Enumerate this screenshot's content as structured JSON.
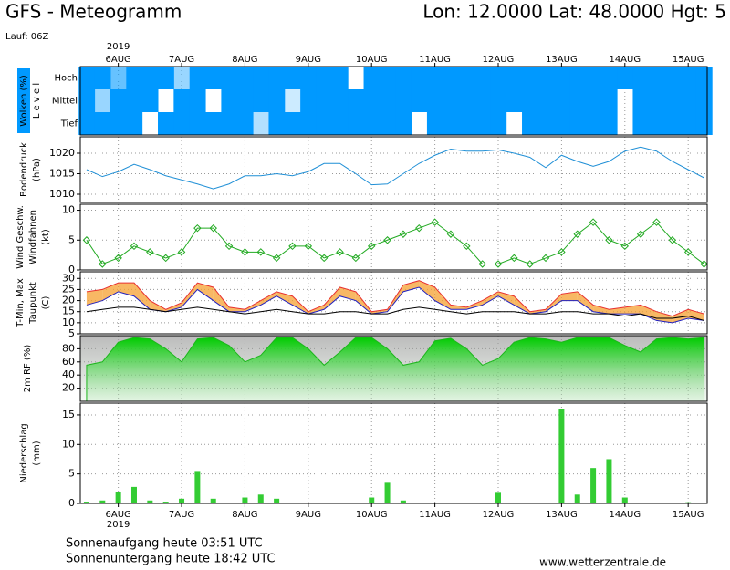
{
  "header": {
    "title": "GFS - Meteogramm",
    "location": "Lon: 12.0000 Lat: 48.0000 Hgt: 5",
    "run": "Lauf: 06Z"
  },
  "footer": {
    "sunrise": "Sonnenaufgang heute 03:51 UTC",
    "sunset": "Sonnenuntergang heute 18:42 UTC",
    "source": "www.wetterzentrale.de"
  },
  "chart_data": [
    {
      "type": "cloud",
      "ylabel": [
        "Wolken (%)",
        "L e v e l"
      ],
      "ylabel_colors": [
        "#ffffff",
        "#000000"
      ],
      "year_label": "2019",
      "xlim": [
        -0.6,
        9.3
      ],
      "xticks": [
        {
          "value": 0,
          "label": "6AUG"
        },
        {
          "value": 1,
          "label": "7AUG"
        },
        {
          "value": 2,
          "label": "8AUG"
        },
        {
          "value": 3,
          "label": "9AUG"
        },
        {
          "value": 4,
          "label": "10AUG"
        },
        {
          "value": 5,
          "label": "11AUG"
        },
        {
          "value": 6,
          "label": "12AUG"
        },
        {
          "value": 7,
          "label": "13AUG"
        },
        {
          "value": 8,
          "label": "14AUG"
        },
        {
          "value": 9,
          "label": "15AUG"
        }
      ],
      "x": [
        -0.5,
        -0.25,
        0,
        0.25,
        0.5,
        0.75,
        1,
        1.25,
        1.5,
        1.75,
        2,
        2.25,
        2.5,
        2.75,
        3,
        3.25,
        3.5,
        3.75,
        4,
        4.25,
        4.5,
        4.75,
        5,
        5.25,
        5.5,
        5.75,
        6,
        6.25,
        6.5,
        6.75,
        7,
        7.25,
        7.5,
        7.75,
        8,
        8.25,
        8.5,
        8.75,
        9,
        9.25
      ],
      "series": [
        {
          "name": "Hoch",
          "color": "#0099ff",
          "values": [
            100,
            100,
            60,
            100,
            100,
            100,
            40,
            100,
            100,
            100,
            100,
            100,
            100,
            100,
            100,
            100,
            100,
            0,
            100,
            100,
            100,
            100,
            100,
            100,
            100,
            100,
            100,
            100,
            100,
            100,
            100,
            100,
            100,
            100,
            100,
            100,
            100,
            100,
            100,
            100
          ]
        },
        {
          "name": "Mittel",
          "color": "#0099ff",
          "values": [
            100,
            40,
            100,
            100,
            100,
            0,
            100,
            100,
            0,
            100,
            100,
            100,
            100,
            20,
            100,
            100,
            100,
            100,
            100,
            100,
            100,
            100,
            100,
            100,
            100,
            100,
            100,
            100,
            100,
            100,
            100,
            100,
            100,
            100,
            0,
            100,
            100,
            100,
            100,
            100
          ]
        },
        {
          "name": "Tief",
          "color": "#0099ff",
          "values": [
            100,
            100,
            100,
            100,
            0,
            100,
            100,
            100,
            100,
            100,
            100,
            30,
            100,
            100,
            100,
            100,
            100,
            100,
            100,
            100,
            100,
            0,
            100,
            100,
            100,
            100,
            100,
            0,
            100,
            100,
            100,
            100,
            100,
            100,
            0,
            100,
            100,
            100,
            100,
            100
          ]
        }
      ]
    },
    {
      "type": "line",
      "ylabel": [
        "Bodendruck",
        "(hPa)"
      ],
      "ylabel_colors": [
        "#000000",
        "#000000"
      ],
      "xlim": [
        -0.6,
        9.3
      ],
      "ylim": [
        1008,
        1024
      ],
      "yticks": [
        1010,
        1015,
        1020
      ],
      "grid": true,
      "x": [
        -0.5,
        -0.25,
        0,
        0.25,
        0.5,
        0.75,
        1,
        1.25,
        1.5,
        1.75,
        2,
        2.25,
        2.5,
        2.75,
        3,
        3.25,
        3.5,
        3.75,
        4,
        4.25,
        4.5,
        4.75,
        5,
        5.25,
        5.5,
        5.75,
        6,
        6.25,
        6.5,
        6.75,
        7,
        7.25,
        7.5,
        7.75,
        8,
        8.25,
        8.5,
        8.75,
        9,
        9.25
      ],
      "series": [
        {
          "name": "Bodendruck",
          "color": "#1f8fd6",
          "values": [
            1016,
            1014.3,
            1015.5,
            1017.3,
            1016,
            1014.5,
            1013.5,
            1012.5,
            1011.3,
            1012.5,
            1014.5,
            1014.5,
            1015,
            1014.5,
            1015.5,
            1017.5,
            1017.5,
            1015,
            1012.3,
            1012.5,
            1015,
            1017.5,
            1019.5,
            1021,
            1020.5,
            1020.5,
            1020.8,
            1020,
            1019,
            1016.5,
            1019.5,
            1018,
            1016.8,
            1018,
            1020.5,
            1021.5,
            1020.5,
            1018,
            1016,
            1014
          ]
        }
      ]
    },
    {
      "type": "line",
      "ylabel": [
        "Wind Geschw.",
        "Windfahnen",
        "(kt)"
      ],
      "ylabel_colors": [
        "#00aa00",
        "#000000",
        "#000000"
      ],
      "xlim": [
        -0.6,
        9.3
      ],
      "ylim": [
        0,
        11
      ],
      "yticks": [
        0,
        5,
        10
      ],
      "grid": true,
      "markers": true,
      "x": [
        -0.5,
        -0.25,
        0,
        0.25,
        0.5,
        0.75,
        1,
        1.25,
        1.5,
        1.75,
        2,
        2.25,
        2.5,
        2.75,
        3,
        3.25,
        3.5,
        3.75,
        4,
        4.25,
        4.5,
        4.75,
        5,
        5.25,
        5.5,
        5.75,
        6,
        6.25,
        6.5,
        6.75,
        7,
        7.25,
        7.5,
        7.75,
        8,
        8.25,
        8.5,
        8.75,
        9,
        9.25
      ],
      "series": [
        {
          "name": "Wind Geschw.",
          "color": "#22aa22",
          "values": [
            5,
            1,
            2,
            4,
            3,
            2,
            3,
            7,
            7,
            4,
            3,
            3,
            2,
            4,
            4,
            2,
            3,
            2,
            4,
            5,
            6,
            7,
            8,
            6,
            4,
            1,
            1,
            2,
            1,
            2,
            3,
            6,
            8,
            5,
            4,
            6,
            8,
            5,
            3,
            1
          ]
        }
      ]
    },
    {
      "type": "line",
      "ylabel": [
        "T-Min, Max",
        "Taupunkt",
        "(C)"
      ],
      "ylabel_colors": [
        "#cc0000",
        "#000000",
        "#000000"
      ],
      "xlim": [
        -0.6,
        9.3
      ],
      "ylim": [
        5,
        33
      ],
      "yticks": [
        5,
        10,
        15,
        20,
        25,
        30
      ],
      "grid": true,
      "fill_color": "#f5a030",
      "x": [
        -0.5,
        -0.25,
        0,
        0.25,
        0.5,
        0.75,
        1,
        1.25,
        1.5,
        1.75,
        2,
        2.25,
        2.5,
        2.75,
        3,
        3.25,
        3.5,
        3.75,
        4,
        4.25,
        4.5,
        4.75,
        5,
        5.25,
        5.5,
        5.75,
        6,
        6.25,
        6.5,
        6.75,
        7,
        7.25,
        7.5,
        7.75,
        8,
        8.25,
        8.5,
        8.75,
        9,
        9.25
      ],
      "series": [
        {
          "name": "Max",
          "color": "#e83030",
          "values": [
            24,
            25,
            28,
            28,
            20,
            16,
            19,
            28,
            26,
            17,
            16,
            20,
            24,
            22,
            15,
            18,
            26,
            24,
            15,
            16,
            27,
            29,
            26,
            18,
            17,
            20,
            24,
            22,
            15,
            16,
            23,
            24,
            18,
            16,
            17,
            18,
            15,
            13,
            16,
            14
          ]
        },
        {
          "name": "T-Min",
          "color": "#2020c0",
          "values": [
            18,
            20,
            24,
            22,
            16,
            15,
            17,
            25,
            20,
            15,
            15,
            18,
            22,
            18,
            14,
            16,
            22,
            20,
            14,
            15,
            24,
            26,
            20,
            16,
            16,
            18,
            22,
            18,
            14,
            15,
            20,
            20,
            15,
            14,
            14,
            14,
            11,
            10,
            12,
            11
          ]
        },
        {
          "name": "Taupunkt",
          "color": "#000000",
          "values": [
            15,
            16,
            17,
            17,
            16,
            15,
            16,
            17,
            16,
            15,
            14,
            15,
            16,
            15,
            14,
            14,
            15,
            15,
            14,
            14,
            16,
            17,
            16,
            15,
            14,
            15,
            15,
            15,
            14,
            14,
            15,
            15,
            14,
            14,
            13,
            14,
            12,
            12,
            13,
            11
          ]
        }
      ]
    },
    {
      "type": "area",
      "ylabel": [
        "2m RF (%)"
      ],
      "ylabel_colors": [
        "#00aa00"
      ],
      "xlim": [
        -0.6,
        9.3
      ],
      "ylim": [
        0,
        100
      ],
      "yticks": [
        20,
        40,
        60,
        80
      ],
      "grid": true,
      "x": [
        -0.5,
        -0.25,
        0,
        0.25,
        0.5,
        0.75,
        1,
        1.25,
        1.5,
        1.75,
        2,
        2.25,
        2.5,
        2.75,
        3,
        3.25,
        3.5,
        3.75,
        4,
        4.25,
        4.5,
        4.75,
        5,
        5.25,
        5.5,
        5.75,
        6,
        6.25,
        6.5,
        6.75,
        7,
        7.25,
        7.5,
        7.75,
        8,
        8.25,
        8.5,
        8.75,
        9,
        9.25
      ],
      "series": [
        {
          "name": "2m RF (%)",
          "color": "#1cb51c",
          "values": [
            55,
            60,
            90,
            97,
            95,
            80,
            60,
            95,
            97,
            85,
            60,
            70,
            97,
            97,
            80,
            55,
            75,
            97,
            97,
            80,
            55,
            60,
            92,
            96,
            80,
            55,
            65,
            90,
            97,
            95,
            90,
            97,
            97,
            97,
            85,
            75,
            95,
            97,
            95,
            97
          ]
        }
      ]
    },
    {
      "type": "bar",
      "ylabel": [
        "Niederschlag",
        "(mm)"
      ],
      "ylabel_colors": [
        "#000000",
        "#000000"
      ],
      "year_label": "2019",
      "xlim": [
        -0.6,
        9.3
      ],
      "ylim": [
        0,
        17
      ],
      "yticks": [
        0,
        5,
        10,
        15
      ],
      "grid": true,
      "xticks": [
        {
          "value": 0,
          "label": "6AUG"
        },
        {
          "value": 1,
          "label": "7AUG"
        },
        {
          "value": 2,
          "label": "8AUG"
        },
        {
          "value": 3,
          "label": "9AUG"
        },
        {
          "value": 4,
          "label": "10AUG"
        },
        {
          "value": 5,
          "label": "11AUG"
        },
        {
          "value": 6,
          "label": "12AUG"
        },
        {
          "value": 7,
          "label": "13AUG"
        },
        {
          "value": 8,
          "label": "14AUG"
        },
        {
          "value": 9,
          "label": "15AUG"
        }
      ],
      "x": [
        -0.5,
        -0.25,
        0,
        0.25,
        0.5,
        0.75,
        1,
        1.25,
        1.5,
        1.75,
        2,
        2.25,
        2.5,
        2.75,
        3,
        3.25,
        3.5,
        3.75,
        4,
        4.25,
        4.5,
        4.75,
        5,
        5.25,
        5.5,
        5.75,
        6,
        6.25,
        6.5,
        6.75,
        7,
        7.25,
        7.5,
        7.75,
        8,
        8.25,
        8.5,
        8.75,
        9,
        9.25
      ],
      "series": [
        {
          "name": "Niederschlag",
          "color": "#33cc33",
          "values": [
            0.3,
            0.5,
            2,
            2.8,
            0.5,
            0.3,
            0.8,
            5.5,
            0.8,
            0,
            1,
            1.5,
            0.8,
            0,
            0,
            0,
            0,
            0,
            1,
            3.5,
            0.5,
            0,
            0,
            0,
            0,
            0,
            1.8,
            0,
            0,
            0,
            16,
            1.5,
            6,
            7.5,
            1,
            0,
            0,
            0,
            0.2,
            0
          ]
        }
      ]
    }
  ]
}
